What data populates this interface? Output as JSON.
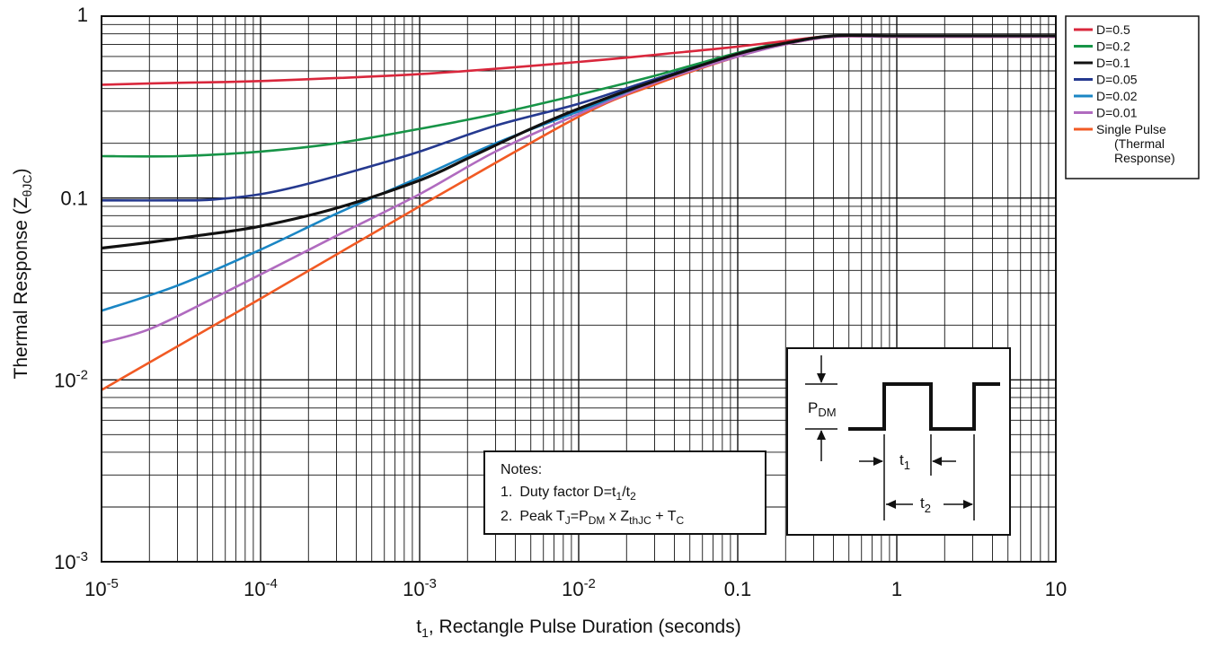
{
  "chart_data": {
    "type": "line",
    "title": "",
    "xlabel": {
      "prefix": "t",
      "sub": "1",
      "rest": ", Rectangle Pulse Duration (seconds)"
    },
    "ylabel": {
      "main": "Thermal Response (Z",
      "sub": "θJC",
      "close": ")"
    },
    "x_scale": "log",
    "y_scale": "log",
    "xlim": [
      1e-05,
      10
    ],
    "ylim": [
      0.001,
      1
    ],
    "grid": true,
    "legend_position": "right, outside plot",
    "x_ticks": [
      {
        "value": 1e-05,
        "base": "10",
        "exp": "-5"
      },
      {
        "value": 0.0001,
        "base": "10",
        "exp": "-4"
      },
      {
        "value": 0.001,
        "base": "10",
        "exp": "-3"
      },
      {
        "value": 0.01,
        "base": "10",
        "exp": "-2"
      },
      {
        "value": 0.1,
        "base": "0.1",
        "exp": ""
      },
      {
        "value": 1,
        "base": "1",
        "exp": ""
      },
      {
        "value": 10,
        "base": "10",
        "exp": ""
      }
    ],
    "y_ticks": [
      {
        "value": 1,
        "base": "1",
        "exp": ""
      },
      {
        "value": 0.1,
        "base": "0.1",
        "exp": ""
      },
      {
        "value": 0.01,
        "base": "10",
        "exp": "-2"
      },
      {
        "value": 0.001,
        "base": "10",
        "exp": "-3"
      }
    ],
    "series": [
      {
        "name": "D=0.5",
        "color": "#d9273c",
        "x": [
          1e-05,
          3e-05,
          0.0001,
          0.001,
          0.01,
          0.05,
          0.1,
          0.2,
          0.4,
          1,
          10
        ],
        "y": [
          0.42,
          0.43,
          0.44,
          0.48,
          0.56,
          0.64,
          0.68,
          0.73,
          0.78,
          0.78,
          0.78
        ]
      },
      {
        "name": "D=0.2",
        "color": "#179447",
        "x": [
          1e-05,
          3e-05,
          0.0001,
          0.0003,
          0.001,
          0.003,
          0.01,
          0.03,
          0.1,
          0.2,
          0.4,
          1,
          10
        ],
        "y": [
          0.17,
          0.17,
          0.18,
          0.2,
          0.24,
          0.29,
          0.37,
          0.47,
          0.63,
          0.72,
          0.78,
          0.78,
          0.78
        ]
      },
      {
        "name": "D=0.1",
        "color": "#111111",
        "x": [
          1e-05,
          2e-05,
          4e-05,
          0.0001,
          0.0003,
          0.001,
          0.002,
          0.005,
          0.01,
          0.03,
          0.1,
          0.2,
          0.4,
          1,
          10
        ],
        "y": [
          0.053,
          0.057,
          0.062,
          0.07,
          0.088,
          0.125,
          0.165,
          0.24,
          0.31,
          0.44,
          0.62,
          0.71,
          0.78,
          0.78,
          0.78
        ]
      },
      {
        "name": "D=0.05",
        "color": "#25398f",
        "x": [
          1e-05,
          3e-05,
          5e-05,
          0.0001,
          0.0002,
          0.0005,
          0.001,
          0.003,
          0.01,
          0.03,
          0.1,
          0.2,
          0.4,
          1,
          10
        ],
        "y": [
          0.097,
          0.097,
          0.098,
          0.105,
          0.12,
          0.15,
          0.18,
          0.25,
          0.33,
          0.45,
          0.62,
          0.71,
          0.78,
          0.78,
          0.78
        ]
      },
      {
        "name": "D=0.02",
        "color": "#1a86c4",
        "x": [
          1e-05,
          3e-05,
          0.0001,
          0.0003,
          0.001,
          0.003,
          0.01,
          0.03,
          0.1,
          0.2,
          0.4,
          1,
          10
        ],
        "y": [
          0.024,
          0.033,
          0.052,
          0.082,
          0.13,
          0.2,
          0.3,
          0.44,
          0.62,
          0.71,
          0.78,
          0.78,
          0.78
        ]
      },
      {
        "name": "D=0.01",
        "color": "#b06bbf",
        "x": [
          1e-05,
          2e-05,
          5e-05,
          0.0001,
          0.0003,
          0.001,
          0.003,
          0.01,
          0.03,
          0.1,
          0.2,
          0.4,
          1,
          10
        ],
        "y": [
          0.016,
          0.019,
          0.028,
          0.038,
          0.062,
          0.105,
          0.18,
          0.29,
          0.43,
          0.6,
          0.7,
          0.77,
          0.77,
          0.77
        ]
      },
      {
        "name": "Single Pulse (Thermal Response)",
        "color": "#f15a24",
        "x": [
          1e-05,
          0.0001,
          0.001,
          0.01,
          0.03,
          0.1,
          0.2,
          0.4,
          1,
          10
        ],
        "y": [
          0.0088,
          0.028,
          0.09,
          0.28,
          0.42,
          0.6,
          0.7,
          0.77,
          0.77,
          0.77
        ]
      }
    ],
    "legend_labels": [
      [
        "D=0.5"
      ],
      [
        "D=0.2"
      ],
      [
        "D=0.1"
      ],
      [
        "D=0.05"
      ],
      [
        "D=0.02"
      ],
      [
        "D=0.01"
      ],
      [
        "Single Pulse",
        "(Thermal",
        "Response)"
      ]
    ],
    "notes": {
      "heading": "Notes:",
      "line1": {
        "num": "1.",
        "text": "Duty factor D=t",
        "s1": "1",
        "mid": "/t",
        "s2": "2"
      },
      "line2": {
        "num": "2.",
        "a": "Peak T",
        "s1": "J",
        "b": "=P",
        "s2": "DM",
        "c": " x Z",
        "s3": "thJC",
        "d": " + T",
        "s4": "C"
      }
    },
    "pulse_diagram": {
      "pdm_base": "P",
      "pdm_sub": "DM",
      "t1_base": "t",
      "t1_sub": "1",
      "t2_base": "t",
      "t2_sub": "2"
    }
  }
}
